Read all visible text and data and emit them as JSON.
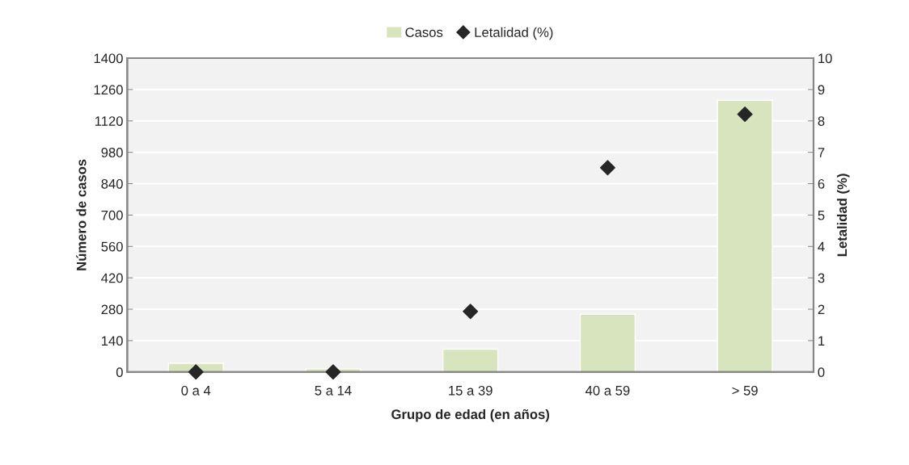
{
  "chart_data": {
    "type": "bar",
    "xlabel": "Grupo de edad (en años)",
    "ylabel": "Número de casos",
    "y2label": "Letalidad (%)",
    "categories": [
      "0 a 4",
      "5 a 14",
      "15 a 39",
      "40 a 59",
      "> 59"
    ],
    "series": [
      {
        "name": "Casos",
        "color": "#d7e4bd",
        "values": [
          39,
          14,
          102,
          257,
          1212
        ]
      },
      {
        "name": "Letalidad (%)",
        "type": "scatter",
        "axis": "y2",
        "color": "#262626",
        "marker": "diamond",
        "values": [
          0,
          0,
          1.93,
          6.51,
          8.21
        ]
      }
    ],
    "ylim": [
      0,
      1400
    ],
    "yticks": [
      0,
      140,
      280,
      420,
      560,
      700,
      840,
      980,
      1120,
      1260,
      1400
    ],
    "y2lim": [
      0,
      10
    ],
    "y2ticks": [
      0,
      1,
      2,
      3,
      4,
      5,
      6,
      7,
      8,
      9,
      10
    ],
    "grid": true,
    "legend": "top"
  }
}
